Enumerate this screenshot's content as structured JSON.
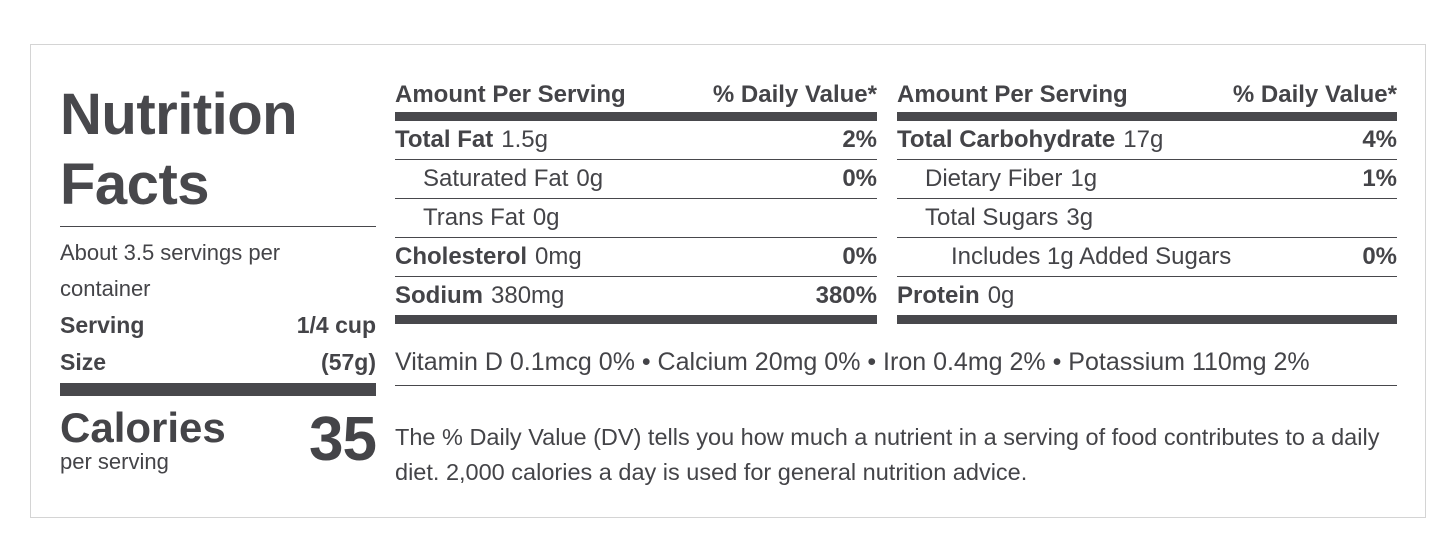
{
  "label": {
    "title_line1": "Nutrition",
    "title_line2": "Facts",
    "servings_per_container": "About 3.5 servings per container",
    "serving_size_label_1": "Serving",
    "serving_size_label_2": "Size",
    "serving_size_value_1": "1/4 cup",
    "serving_size_value_2": "(57g)",
    "calories_label": "Calories",
    "calories_sub": "per serving",
    "calories_value": "35"
  },
  "table_left": {
    "header_amount": "Amount Per Serving",
    "header_dv": "% Daily Value*",
    "rows": [
      {
        "name": "Total Fat",
        "amount": "1.5g",
        "dv": "2%"
      },
      {
        "name": "Saturated Fat",
        "amount": "0g",
        "dv": "0%"
      },
      {
        "name": "Trans Fat",
        "amount": "0g",
        "dv": ""
      },
      {
        "name": "Cholesterol",
        "amount": "0mg",
        "dv": "0%"
      },
      {
        "name": "Sodium",
        "amount": "380mg",
        "dv": "380%"
      }
    ]
  },
  "table_right": {
    "header_amount": "Amount Per Serving",
    "header_dv": "% Daily Value*",
    "rows": [
      {
        "name": "Total Carbohydrate",
        "amount": "17g",
        "dv": "4%"
      },
      {
        "name": "Dietary Fiber",
        "amount": "1g",
        "dv": "1%"
      },
      {
        "name": "Total Sugars",
        "amount": "3g",
        "dv": ""
      },
      {
        "name": "Includes 1g Added Sugars",
        "amount": "",
        "dv": "0%"
      },
      {
        "name": "Protein",
        "amount": "0g",
        "dv": ""
      }
    ]
  },
  "vitamins": "Vitamin D 0.1mcg 0% • Calcium 20mg 0% • Iron 0.4mg 2% • Potassium 110mg 2%",
  "footnote": "The % Daily Value (DV) tells you how much a nutrient in a serving of food contributes to a daily diet. 2,000 calories a day is used for general nutrition advice."
}
